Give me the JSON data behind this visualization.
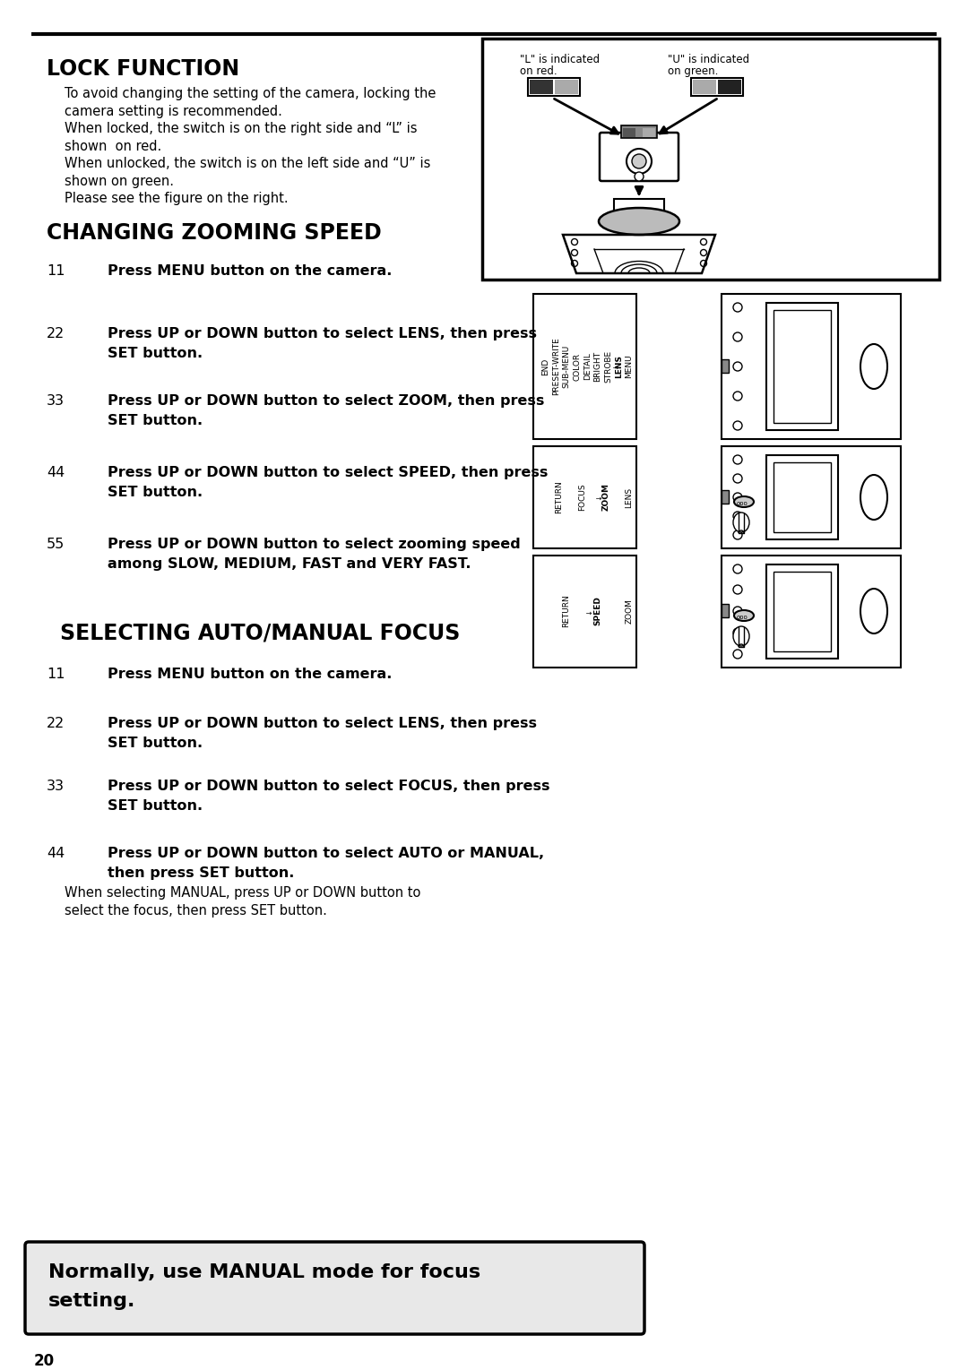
{
  "bg_color": "#ffffff",
  "page_number": "20",
  "section1_title": "LOCK FUNCTION",
  "section1_body": [
    "To avoid changing the setting of the camera, locking the",
    "camera setting is recommended.",
    "When locked, the switch is on the right side and “L” is",
    "shown  on red.",
    "When unlocked, the switch is on the left side and “U” is",
    "shown on green.",
    "Please see the figure on the right."
  ],
  "section2_title": "CHANGING ZOOMING SPEED",
  "section2_steps": [
    {
      "num": "11",
      "line1": "Press MENU button on the camera.",
      "line2": ""
    },
    {
      "num": "22",
      "line1": "Press UP or DOWN button to select LENS, then press",
      "line2": "SET button."
    },
    {
      "num": "33",
      "line1": "Press UP or DOWN button to select ZOOM, then press",
      "line2": "SET button."
    },
    {
      "num": "44",
      "line1": "Press UP or DOWN button to select SPEED, then press",
      "line2": "SET button."
    },
    {
      "num": "55",
      "line1": "Press UP or DOWN button to select zooming speed",
      "line2": "among SLOW, MEDIUM, FAST and VERY FAST."
    }
  ],
  "section3_title": "SELECTING AUTO/MANUAL FOCUS",
  "section3_steps": [
    {
      "num": "11",
      "line1": "Press MENU button on the camera.",
      "line2": "",
      "extra": ""
    },
    {
      "num": "22",
      "line1": "Press UP or DOWN button to select LENS, then press",
      "line2": "SET button.",
      "extra": ""
    },
    {
      "num": "33",
      "line1": "Press UP or DOWN button to select FOCUS, then press",
      "line2": "SET button.",
      "extra": ""
    },
    {
      "num": "44",
      "line1": "Press UP or DOWN button to select AUTO or MANUAL,",
      "line2": "then press SET button.",
      "extra": "When selecting MANUAL, press UP or DOWN button to\nselect the focus, then press SET button."
    }
  ],
  "callout": "Normally, use MANUAL mode for focus\nsetting.",
  "fig1_label_L1": "\"L\" is indicated",
  "fig1_label_L2": "on red.",
  "fig1_label_U1": "\"U\" is indicated",
  "fig1_label_U2": "on green.",
  "menu1_items": [
    "MENU",
    "LENS",
    "STROBE",
    "BRIGHT",
    "DETAIL",
    "COLOR",
    "SUB-MENU",
    "PRESET-WRITE",
    "END"
  ],
  "menu1_highlight": 1,
  "menu2_items": [
    "LENS",
    "ZOOM",
    "FOCUS",
    "RETURN"
  ],
  "menu2_highlight": 1,
  "menu3_items": [
    "ZOOM",
    "SPEED",
    "RETURN"
  ],
  "menu3_highlight": 1
}
